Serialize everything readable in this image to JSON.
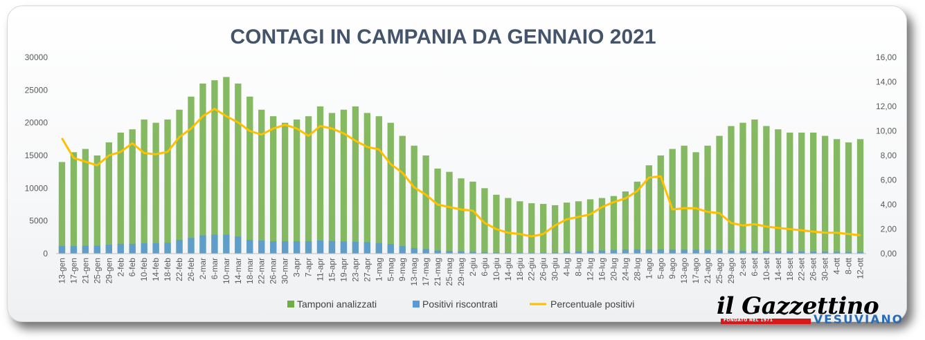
{
  "chart_data": {
    "type": "bar",
    "title": "CONTAGI IN CAMPANIA DA GENNAIO 2021",
    "ylim": [
      0,
      30000
    ],
    "y2lim": [
      0,
      16
    ],
    "yticks": [
      "0",
      "5000",
      "10000",
      "15000",
      "20000",
      "25000",
      "30000"
    ],
    "y2ticks": [
      "0,00",
      "2,00",
      "4,00",
      "6,00",
      "8,00",
      "10,00",
      "12,00",
      "14,00",
      "16,00"
    ],
    "grid": false,
    "legend_position": "bottom",
    "categories": [
      "13-gen",
      "17-gen",
      "21-gen",
      "25-gen",
      "29-gen",
      "2-feb",
      "6-feb",
      "10-feb",
      "14-feb",
      "18-feb",
      "22-feb",
      "26-feb",
      "2-mar",
      "6-mar",
      "10-mar",
      "14-mar",
      "18-mar",
      "22-mar",
      "26-mar",
      "30-mar",
      "3-apr",
      "7-apr",
      "11-apr",
      "15-apr",
      "19-apr",
      "23-apr",
      "27-apr",
      "1-mag",
      "5-mag",
      "9-mag",
      "13-mag",
      "17-mag",
      "21-mag",
      "25-mag",
      "29-mag",
      "2-giu",
      "6-giu",
      "10-giu",
      "14-giu",
      "18-giu",
      "22-giu",
      "26-giu",
      "30-giu",
      "4-lug",
      "8-lug",
      "12-lug",
      "16-lug",
      "20-lug",
      "24-lug",
      "28-lug",
      "1-ago",
      "5-ago",
      "9-ago",
      "13-ago",
      "17-ago",
      "21-ago",
      "25-ago",
      "29-ago",
      "2-set",
      "6-set",
      "10-set",
      "14-set",
      "18-set",
      "22-set",
      "26-set",
      "30-set",
      "4-ott",
      "8-ott",
      "12-ott"
    ],
    "series": [
      {
        "name": "Tamponi analizzati",
        "type": "bar",
        "axis": "left",
        "color": "#70ad47",
        "values": [
          14000,
          15500,
          16000,
          15000,
          17000,
          18500,
          19000,
          20500,
          20000,
          20500,
          22000,
          24000,
          26000,
          26500,
          27000,
          26000,
          24000,
          22000,
          21000,
          20000,
          20500,
          21000,
          22500,
          21500,
          22000,
          22500,
          21500,
          21000,
          20000,
          18000,
          16500,
          15000,
          13000,
          12500,
          11500,
          11000,
          10000,
          9000,
          8500,
          8000,
          7700,
          7600,
          7400,
          7800,
          8000,
          8300,
          8500,
          8800,
          9500,
          11000,
          13500,
          15000,
          16000,
          16500,
          15500,
          16500,
          18000,
          19500,
          20000,
          20500,
          19500,
          19000,
          18500,
          18500,
          18500,
          18000,
          17500,
          17000,
          17500
        ]
      },
      {
        "name": "Positivi riscontrati",
        "type": "bar",
        "axis": "left",
        "color": "#5b9bd5",
        "values": [
          1150,
          1150,
          1200,
          1200,
          1350,
          1500,
          1500,
          1600,
          1600,
          1650,
          2100,
          2400,
          2800,
          2900,
          2900,
          2600,
          2100,
          2000,
          1900,
          1900,
          1900,
          1900,
          2000,
          1950,
          1850,
          1800,
          1750,
          1600,
          1450,
          1150,
          850,
          700,
          480,
          420,
          340,
          280,
          230,
          170,
          140,
          120,
          110,
          150,
          190,
          260,
          320,
          380,
          480,
          560,
          620,
          650,
          640,
          640,
          620,
          600,
          580,
          560,
          520,
          480,
          440,
          400,
          380,
          350,
          330,
          320,
          300,
          290,
          280,
          270,
          260
        ]
      },
      {
        "name": "Percentuale positivi",
        "type": "line",
        "axis": "right",
        "color": "#ffc000",
        "values": [
          9.4,
          7.8,
          7.5,
          7.2,
          8.0,
          8.3,
          9.0,
          8.2,
          8.1,
          8.3,
          9.5,
          10.2,
          11.2,
          11.8,
          11.2,
          10.7,
          10.0,
          9.7,
          10.2,
          10.5,
          10.2,
          9.6,
          10.4,
          10.2,
          9.8,
          9.2,
          8.7,
          8.5,
          7.3,
          6.6,
          5.4,
          4.8,
          4.0,
          3.8,
          3.6,
          3.5,
          2.5,
          2.0,
          1.7,
          1.6,
          1.4,
          1.6,
          2.3,
          2.8,
          3.0,
          3.2,
          3.8,
          4.2,
          4.5,
          5.1,
          6.2,
          6.3,
          3.6,
          3.7,
          3.7,
          3.4,
          3.3,
          2.5,
          2.3,
          2.4,
          2.2,
          2.1,
          2.0,
          1.9,
          1.8,
          1.7,
          1.7,
          1.6,
          1.5
        ]
      }
    ]
  },
  "logo": {
    "name": "il Gazzettino",
    "tagline": "FONDATO NEL 1971",
    "subtitle": "VESUVIANO"
  }
}
